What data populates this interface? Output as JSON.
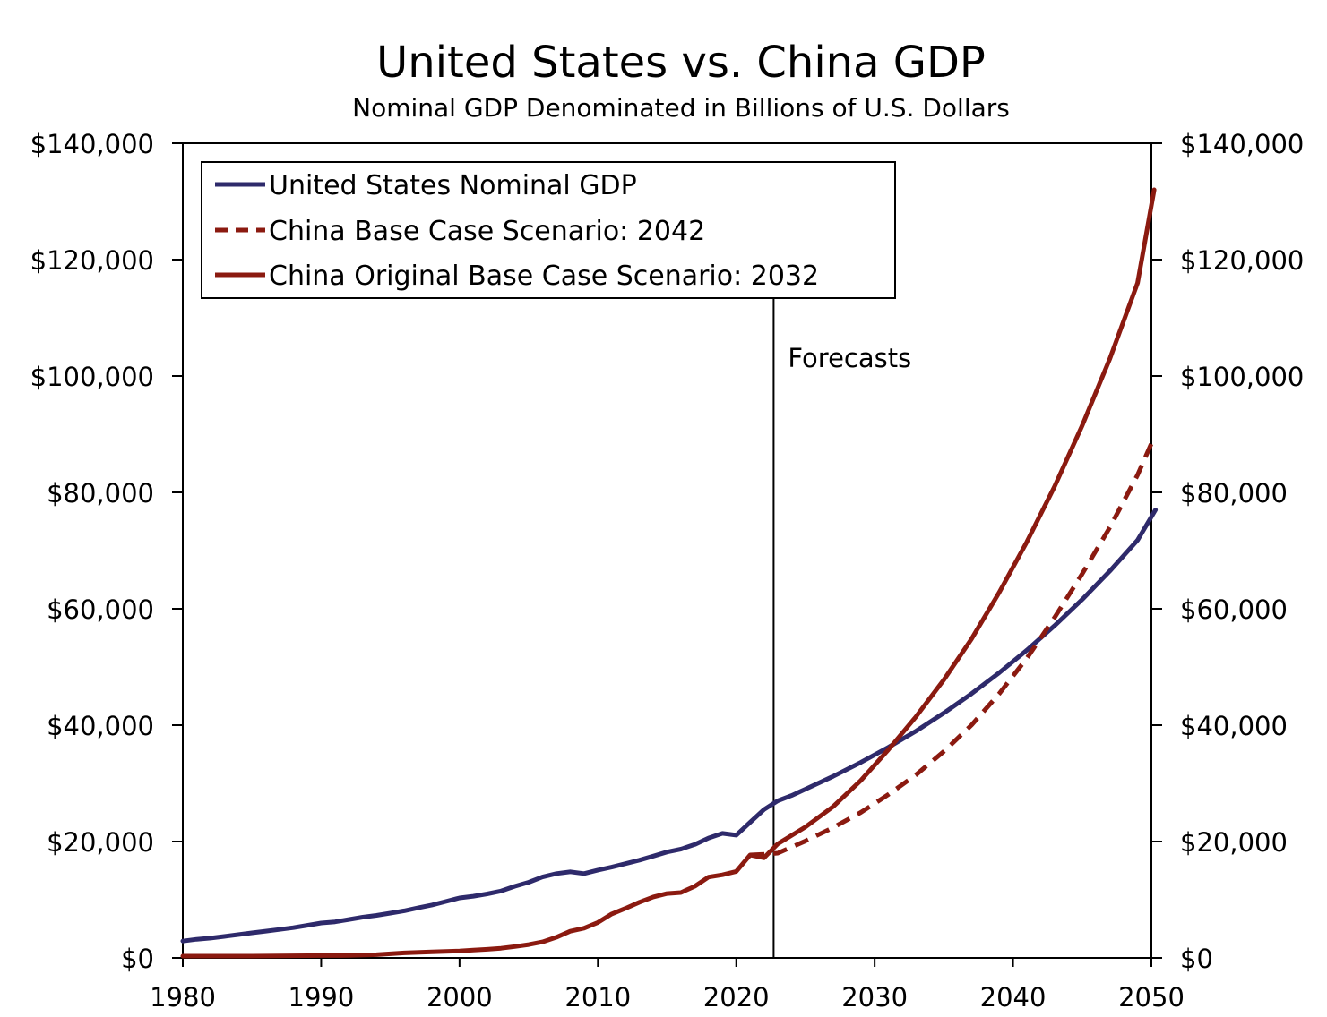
{
  "chart_data": {
    "type": "line",
    "title": "United States vs. China GDP",
    "subtitle": "Nominal GDP Denominated in Billions of U.S. Dollars",
    "xlabel": "",
    "ylabel": "",
    "xlim": [
      1980,
      2050
    ],
    "ylim": [
      0,
      140000
    ],
    "x_ticks": [
      "1980",
      "1990",
      "2000",
      "2010",
      "2020",
      "2030",
      "2040",
      "2050"
    ],
    "y_ticks_left": [
      "$0",
      "$20,000",
      "$40,000",
      "$60,000",
      "$80,000",
      "$100,000",
      "$120,000",
      "$140,000"
    ],
    "y_ticks_right": [
      "$0",
      "$20,000",
      "$40,000",
      "$60,000",
      "$80,000",
      "$100,000",
      "$120,000",
      "$140,000"
    ],
    "y_tick_values": [
      0,
      20000,
      40000,
      60000,
      80000,
      100000,
      120000,
      140000
    ],
    "x_tick_values": [
      1980,
      1990,
      2000,
      2010,
      2020,
      2030,
      2040,
      2050
    ],
    "annotation": {
      "label": "Forecasts",
      "x": 2022.7
    },
    "legend_position": "top-left",
    "series": [
      {
        "name": "United States Nominal GDP",
        "color": "#2e2a6b",
        "dash": "solid",
        "points": [
          [
            1980,
            2900
          ],
          [
            1981,
            3200
          ],
          [
            1982,
            3400
          ],
          [
            1983,
            3700
          ],
          [
            1984,
            4000
          ],
          [
            1985,
            4300
          ],
          [
            1986,
            4600
          ],
          [
            1987,
            4900
          ],
          [
            1988,
            5200
          ],
          [
            1989,
            5600
          ],
          [
            1990,
            6000
          ],
          [
            1991,
            6200
          ],
          [
            1992,
            6600
          ],
          [
            1993,
            7000
          ],
          [
            1994,
            7300
          ],
          [
            1995,
            7700
          ],
          [
            1996,
            8100
          ],
          [
            1997,
            8600
          ],
          [
            1998,
            9100
          ],
          [
            1999,
            9700
          ],
          [
            2000,
            10300
          ],
          [
            2001,
            10600
          ],
          [
            2002,
            11000
          ],
          [
            2003,
            11500
          ],
          [
            2004,
            12300
          ],
          [
            2005,
            13000
          ],
          [
            2006,
            13900
          ],
          [
            2007,
            14500
          ],
          [
            2008,
            14800
          ],
          [
            2009,
            14500
          ],
          [
            2010,
            15100
          ],
          [
            2011,
            15600
          ],
          [
            2012,
            16200
          ],
          [
            2013,
            16800
          ],
          [
            2014,
            17500
          ],
          [
            2015,
            18200
          ],
          [
            2016,
            18700
          ],
          [
            2017,
            19500
          ],
          [
            2018,
            20600
          ],
          [
            2019,
            21400
          ],
          [
            2020,
            21100
          ],
          [
            2021,
            23300
          ],
          [
            2022,
            25500
          ],
          [
            2023,
            27000
          ],
          [
            2024,
            27900
          ],
          [
            2025,
            29000
          ],
          [
            2027,
            31200
          ],
          [
            2029,
            33600
          ],
          [
            2031,
            36200
          ],
          [
            2033,
            39000
          ],
          [
            2035,
            42100
          ],
          [
            2037,
            45400
          ],
          [
            2039,
            49000
          ],
          [
            2041,
            52900
          ],
          [
            2043,
            57100
          ],
          [
            2045,
            61600
          ],
          [
            2047,
            66500
          ],
          [
            2049,
            71800
          ],
          [
            2050.3,
            77000
          ]
        ]
      },
      {
        "name": "China Base Case Scenario: 2042",
        "color": "#8b1a10",
        "dash": "dashed",
        "points": [
          [
            2021,
            17700
          ],
          [
            2022,
            17800
          ],
          [
            2023,
            18000
          ],
          [
            2025,
            20100
          ],
          [
            2027,
            22400
          ],
          [
            2029,
            25000
          ],
          [
            2031,
            28100
          ],
          [
            2033,
            31500
          ],
          [
            2035,
            35500
          ],
          [
            2037,
            40000
          ],
          [
            2039,
            45400
          ],
          [
            2041,
            51500
          ],
          [
            2043,
            58500
          ],
          [
            2045,
            66000
          ],
          [
            2047,
            74000
          ],
          [
            2049,
            83000
          ],
          [
            2050.2,
            89500
          ]
        ]
      },
      {
        "name": "China Original Base Case Scenario: 2032",
        "color": "#8b1a10",
        "dash": "solid",
        "points": [
          [
            1980,
            300
          ],
          [
            1985,
            300
          ],
          [
            1990,
            400
          ],
          [
            1992,
            420
          ],
          [
            1994,
            560
          ],
          [
            1996,
            860
          ],
          [
            1998,
            1030
          ],
          [
            2000,
            1200
          ],
          [
            2001,
            1340
          ],
          [
            2002,
            1470
          ],
          [
            2003,
            1660
          ],
          [
            2004,
            1960
          ],
          [
            2005,
            2290
          ],
          [
            2006,
            2750
          ],
          [
            2007,
            3550
          ],
          [
            2008,
            4590
          ],
          [
            2009,
            5100
          ],
          [
            2010,
            6090
          ],
          [
            2011,
            7550
          ],
          [
            2012,
            8530
          ],
          [
            2013,
            9570
          ],
          [
            2014,
            10480
          ],
          [
            2015,
            11060
          ],
          [
            2016,
            11230
          ],
          [
            2017,
            12310
          ],
          [
            2018,
            13890
          ],
          [
            2019,
            14280
          ],
          [
            2020,
            14860
          ],
          [
            2021,
            17700
          ],
          [
            2022,
            17200
          ],
          [
            2023,
            19600
          ],
          [
            2025,
            22500
          ],
          [
            2027,
            26000
          ],
          [
            2029,
            30500
          ],
          [
            2031,
            35800
          ],
          [
            2033,
            41500
          ],
          [
            2035,
            47800
          ],
          [
            2037,
            54800
          ],
          [
            2039,
            62800
          ],
          [
            2041,
            71500
          ],
          [
            2043,
            81000
          ],
          [
            2045,
            91500
          ],
          [
            2047,
            103000
          ],
          [
            2049,
            116000
          ],
          [
            2050.2,
            132000
          ]
        ]
      }
    ]
  }
}
